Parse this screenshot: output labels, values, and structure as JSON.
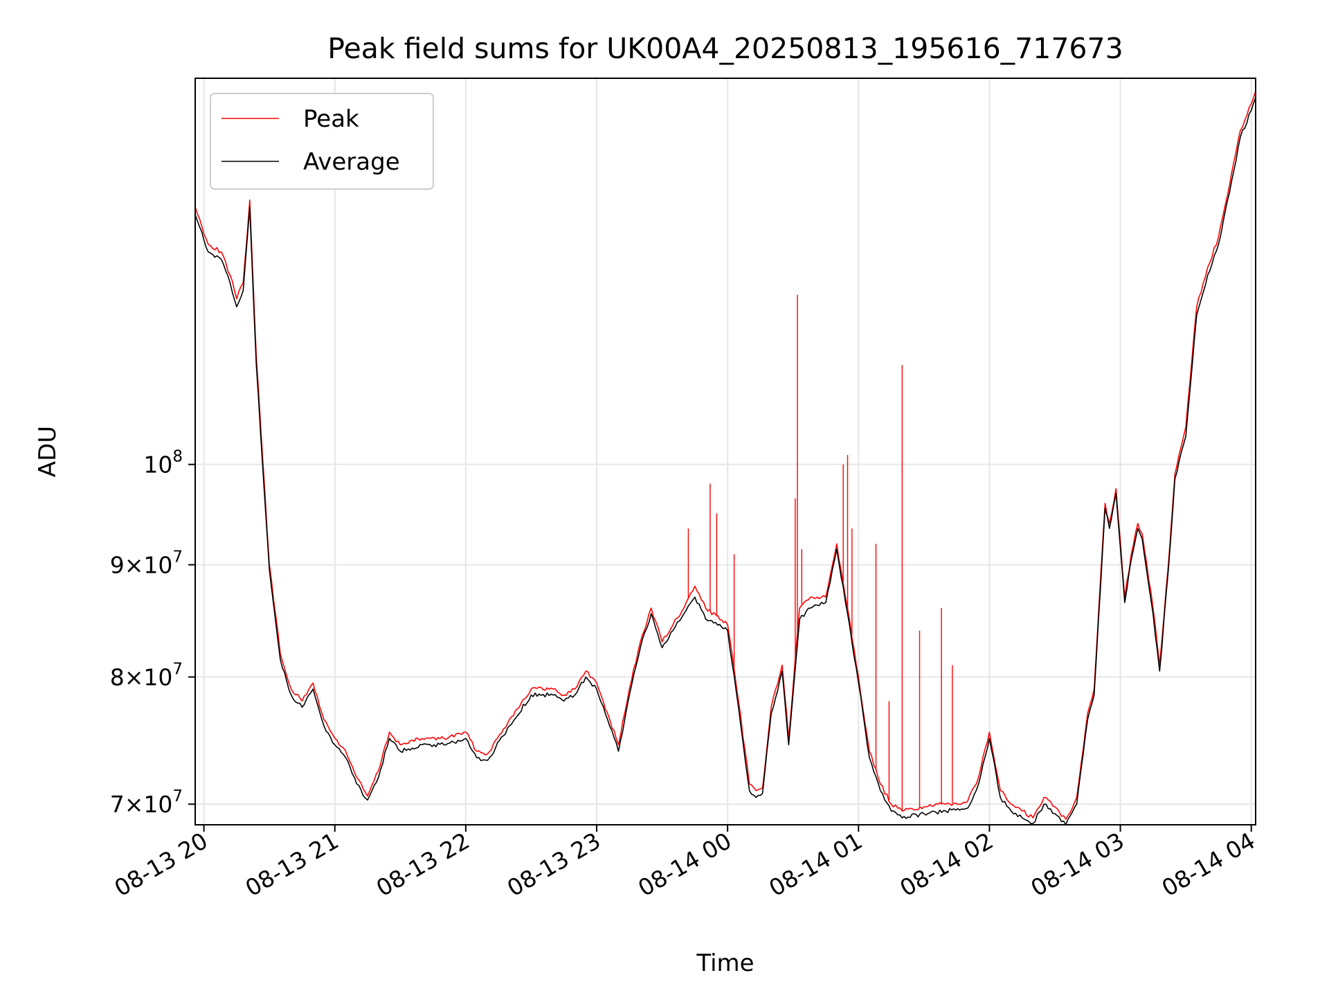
{
  "chart_data": {
    "type": "line",
    "title": "Peak field sums for UK00A4_20250813_195616_717673",
    "xlabel": "Time",
    "ylabel": "ADU",
    "y_scale": "log",
    "xlim": [
      "2025-08-13 19:56",
      "2025-08-14 04:02"
    ],
    "ylim": [
      68500000,
      150000000
    ],
    "x_ticks": [
      "08-13 20",
      "08-13 21",
      "08-13 22",
      "08-13 23",
      "08-14 00",
      "08-14 01",
      "08-14 02",
      "08-14 03",
      "08-14 04"
    ],
    "y_ticks": [
      {
        "value": 70000000,
        "mantissa": "7",
        "base": "10",
        "exp": "7"
      },
      {
        "value": 80000000,
        "mantissa": "8",
        "base": "10",
        "exp": "7"
      },
      {
        "value": 90000000,
        "mantissa": "9",
        "base": "10",
        "exp": "7"
      },
      {
        "value": 100000000,
        "mantissa": "",
        "base": "10",
        "exp": "8"
      }
    ],
    "grid": true,
    "legend_position": "top-left",
    "series": [
      {
        "name": "Peak",
        "color": "#ff0000",
        "x": [
          "2025-08-13 19:56",
          "2025-08-13 20:02",
          "2025-08-13 20:08",
          "2025-08-13 20:12",
          "2025-08-13 20:15",
          "2025-08-13 20:18",
          "2025-08-13 20:21",
          "2025-08-13 20:24",
          "2025-08-13 20:30",
          "2025-08-13 20:35",
          "2025-08-13 20:40",
          "2025-08-13 20:45",
          "2025-08-13 20:50",
          "2025-08-13 20:55",
          "2025-08-13 21:00",
          "2025-08-13 21:05",
          "2025-08-13 21:10",
          "2025-08-13 21:15",
          "2025-08-13 21:20",
          "2025-08-13 21:25",
          "2025-08-13 21:30",
          "2025-08-13 21:40",
          "2025-08-13 21:50",
          "2025-08-13 22:00",
          "2025-08-13 22:05",
          "2025-08-13 22:10",
          "2025-08-13 22:20",
          "2025-08-13 22:30",
          "2025-08-13 22:40",
          "2025-08-13 22:45",
          "2025-08-13 22:50",
          "2025-08-13 22:55",
          "2025-08-13 23:00",
          "2025-08-13 23:05",
          "2025-08-13 23:10",
          "2025-08-13 23:15",
          "2025-08-13 23:20",
          "2025-08-13 23:25",
          "2025-08-13 23:30",
          "2025-08-13 23:35",
          "2025-08-13 23:40",
          "2025-08-13 23:45",
          "2025-08-13 23:50",
          "2025-08-14 00:00",
          "2025-08-14 00:05",
          "2025-08-14 00:10",
          "2025-08-14 00:13",
          "2025-08-14 00:16",
          "2025-08-14 00:20",
          "2025-08-14 00:25",
          "2025-08-14 00:28",
          "2025-08-14 00:33",
          "2025-08-14 00:38",
          "2025-08-14 00:45",
          "2025-08-14 00:50",
          "2025-08-14 00:55",
          "2025-08-14 01:00",
          "2025-08-14 01:05",
          "2025-08-14 01:10",
          "2025-08-14 01:15",
          "2025-08-14 01:20",
          "2025-08-14 01:30",
          "2025-08-14 01:40",
          "2025-08-14 01:50",
          "2025-08-14 01:55",
          "2025-08-14 02:00",
          "2025-08-14 02:05",
          "2025-08-14 02:10",
          "2025-08-14 02:15",
          "2025-08-14 02:20",
          "2025-08-14 02:25",
          "2025-08-14 02:30",
          "2025-08-14 02:35",
          "2025-08-14 02:40",
          "2025-08-14 02:45",
          "2025-08-14 02:48",
          "2025-08-14 02:50",
          "2025-08-14 02:53",
          "2025-08-14 02:55",
          "2025-08-14 02:58",
          "2025-08-14 03:02",
          "2025-08-14 03:05",
          "2025-08-14 03:08",
          "2025-08-14 03:10",
          "2025-08-14 03:15",
          "2025-08-14 03:18",
          "2025-08-14 03:22",
          "2025-08-14 03:25",
          "2025-08-14 03:30",
          "2025-08-14 03:35",
          "2025-08-14 03:40",
          "2025-08-14 03:45",
          "2025-08-14 03:50",
          "2025-08-14 03:55",
          "2025-08-14 04:00",
          "2025-08-14 04:02"
        ],
        "y": [
          131000000,
          126000000,
          125000000,
          122000000,
          119000000,
          121000000,
          132000000,
          112000000,
          90000000,
          82000000,
          79000000,
          78000000,
          79500000,
          76500000,
          75000000,
          74000000,
          72000000,
          70600000,
          72500000,
          75500000,
          74500000,
          75000000,
          75000000,
          75500000,
          74000000,
          73800000,
          76500000,
          79000000,
          79000000,
          78500000,
          79000000,
          80500000,
          79500000,
          77000000,
          74500000,
          79000000,
          83000000,
          86000000,
          83000000,
          84500000,
          86000000,
          88000000,
          86000000,
          84500000,
          78000000,
          71500000,
          71000000,
          71200000,
          77500000,
          81000000,
          75000000,
          86000000,
          87000000,
          87000000,
          92000000,
          86000000,
          80000000,
          74000000,
          71500000,
          70000000,
          69500000,
          69800000,
          70000000,
          70200000,
          72000000,
          75500000,
          71000000,
          70000000,
          69500000,
          69000000,
          70500000,
          69800000,
          68900000,
          70500000,
          77000000,
          79000000,
          85500000,
          96000000,
          94000000,
          97500000,
          87000000,
          91000000,
          94000000,
          93000000,
          86000000,
          81000000,
          90000000,
          99000000,
          104000000,
          118000000,
          123000000,
          127000000,
          134000000,
          142000000,
          146000000,
          148000000
        ]
      },
      {
        "name": "Average",
        "color": "#000000",
        "x": [
          "2025-08-13 19:56",
          "2025-08-13 20:02",
          "2025-08-13 20:08",
          "2025-08-13 20:12",
          "2025-08-13 20:15",
          "2025-08-13 20:18",
          "2025-08-13 20:21",
          "2025-08-13 20:24",
          "2025-08-13 20:30",
          "2025-08-13 20:35",
          "2025-08-13 20:40",
          "2025-08-13 20:45",
          "2025-08-13 20:50",
          "2025-08-13 20:55",
          "2025-08-13 21:00",
          "2025-08-13 21:05",
          "2025-08-13 21:10",
          "2025-08-13 21:15",
          "2025-08-13 21:20",
          "2025-08-13 21:25",
          "2025-08-13 21:30",
          "2025-08-13 21:40",
          "2025-08-13 21:50",
          "2025-08-13 22:00",
          "2025-08-13 22:05",
          "2025-08-13 22:10",
          "2025-08-13 22:20",
          "2025-08-13 22:30",
          "2025-08-13 22:40",
          "2025-08-13 22:45",
          "2025-08-13 22:50",
          "2025-08-13 22:55",
          "2025-08-13 23:00",
          "2025-08-13 23:05",
          "2025-08-13 23:10",
          "2025-08-13 23:15",
          "2025-08-13 23:20",
          "2025-08-13 23:25",
          "2025-08-13 23:30",
          "2025-08-13 23:35",
          "2025-08-13 23:40",
          "2025-08-13 23:45",
          "2025-08-13 23:50",
          "2025-08-14 00:00",
          "2025-08-14 00:05",
          "2025-08-14 00:10",
          "2025-08-14 00:13",
          "2025-08-14 00:16",
          "2025-08-14 00:20",
          "2025-08-14 00:25",
          "2025-08-14 00:28",
          "2025-08-14 00:33",
          "2025-08-14 00:38",
          "2025-08-14 00:45",
          "2025-08-14 00:50",
          "2025-08-14 00:55",
          "2025-08-14 01:00",
          "2025-08-14 01:05",
          "2025-08-14 01:10",
          "2025-08-14 01:15",
          "2025-08-14 01:20",
          "2025-08-14 01:30",
          "2025-08-14 01:40",
          "2025-08-14 01:50",
          "2025-08-14 01:55",
          "2025-08-14 02:00",
          "2025-08-14 02:05",
          "2025-08-14 02:10",
          "2025-08-14 02:15",
          "2025-08-14 02:20",
          "2025-08-14 02:25",
          "2025-08-14 02:30",
          "2025-08-14 02:35",
          "2025-08-14 02:40",
          "2025-08-14 02:45",
          "2025-08-14 02:48",
          "2025-08-14 02:50",
          "2025-08-14 02:53",
          "2025-08-14 02:55",
          "2025-08-14 02:58",
          "2025-08-14 03:02",
          "2025-08-14 03:05",
          "2025-08-14 03:08",
          "2025-08-14 03:10",
          "2025-08-14 03:15",
          "2025-08-14 03:18",
          "2025-08-14 03:22",
          "2025-08-14 03:25",
          "2025-08-14 03:30",
          "2025-08-14 03:35",
          "2025-08-14 03:40",
          "2025-08-14 03:45",
          "2025-08-14 03:50",
          "2025-08-14 03:55",
          "2025-08-14 04:00",
          "2025-08-14 04:02"
        ],
        "y": [
          130000000,
          125000000,
          124000000,
          121000000,
          118000000,
          120000000,
          131000000,
          111000000,
          89500000,
          81500000,
          78500000,
          77500000,
          79000000,
          76000000,
          74500000,
          73500000,
          71500000,
          70300000,
          72000000,
          75000000,
          74000000,
          74500000,
          74500000,
          75000000,
          73500000,
          73300000,
          76000000,
          78500000,
          78500000,
          78000000,
          78500000,
          80000000,
          79000000,
          76500000,
          74000000,
          78500000,
          82500000,
          85500000,
          82500000,
          84000000,
          85500000,
          87000000,
          85000000,
          84000000,
          77500000,
          71000000,
          70500000,
          70800000,
          77000000,
          80500000,
          74500000,
          85000000,
          86000000,
          86500000,
          91500000,
          85500000,
          79500000,
          73500000,
          71000000,
          69500000,
          69000000,
          69300000,
          69500000,
          69700000,
          71500000,
          75000000,
          70500000,
          69500000,
          69000000,
          68600000,
          70000000,
          69300000,
          68500000,
          70000000,
          76500000,
          78500000,
          85000000,
          95500000,
          93500000,
          97000000,
          86500000,
          90500000,
          93500000,
          92500000,
          85500000,
          80500000,
          89500000,
          98500000,
          103000000,
          117000000,
          122000000,
          126000000,
          133000000,
          141000000,
          145000000,
          147000000
        ]
      }
    ],
    "spikes": {
      "series": "Peak",
      "x": [
        "2025-08-13 23:42",
        "2025-08-13 23:52",
        "2025-08-13 23:55",
        "2025-08-14 00:03",
        "2025-08-14 00:31",
        "2025-08-14 00:32",
        "2025-08-14 00:34",
        "2025-08-14 00:53",
        "2025-08-14 00:55",
        "2025-08-14 00:57",
        "2025-08-14 01:08",
        "2025-08-14 01:14",
        "2025-08-14 01:20",
        "2025-08-14 01:28",
        "2025-08-14 01:38",
        "2025-08-14 01:43"
      ],
      "y": [
        93500000,
        98000000,
        95000000,
        91000000,
        96500000,
        119500000,
        91500000,
        100000000,
        101000000,
        93500000,
        92000000,
        78000000,
        111000000,
        84000000,
        86000000,
        81000000
      ]
    }
  }
}
